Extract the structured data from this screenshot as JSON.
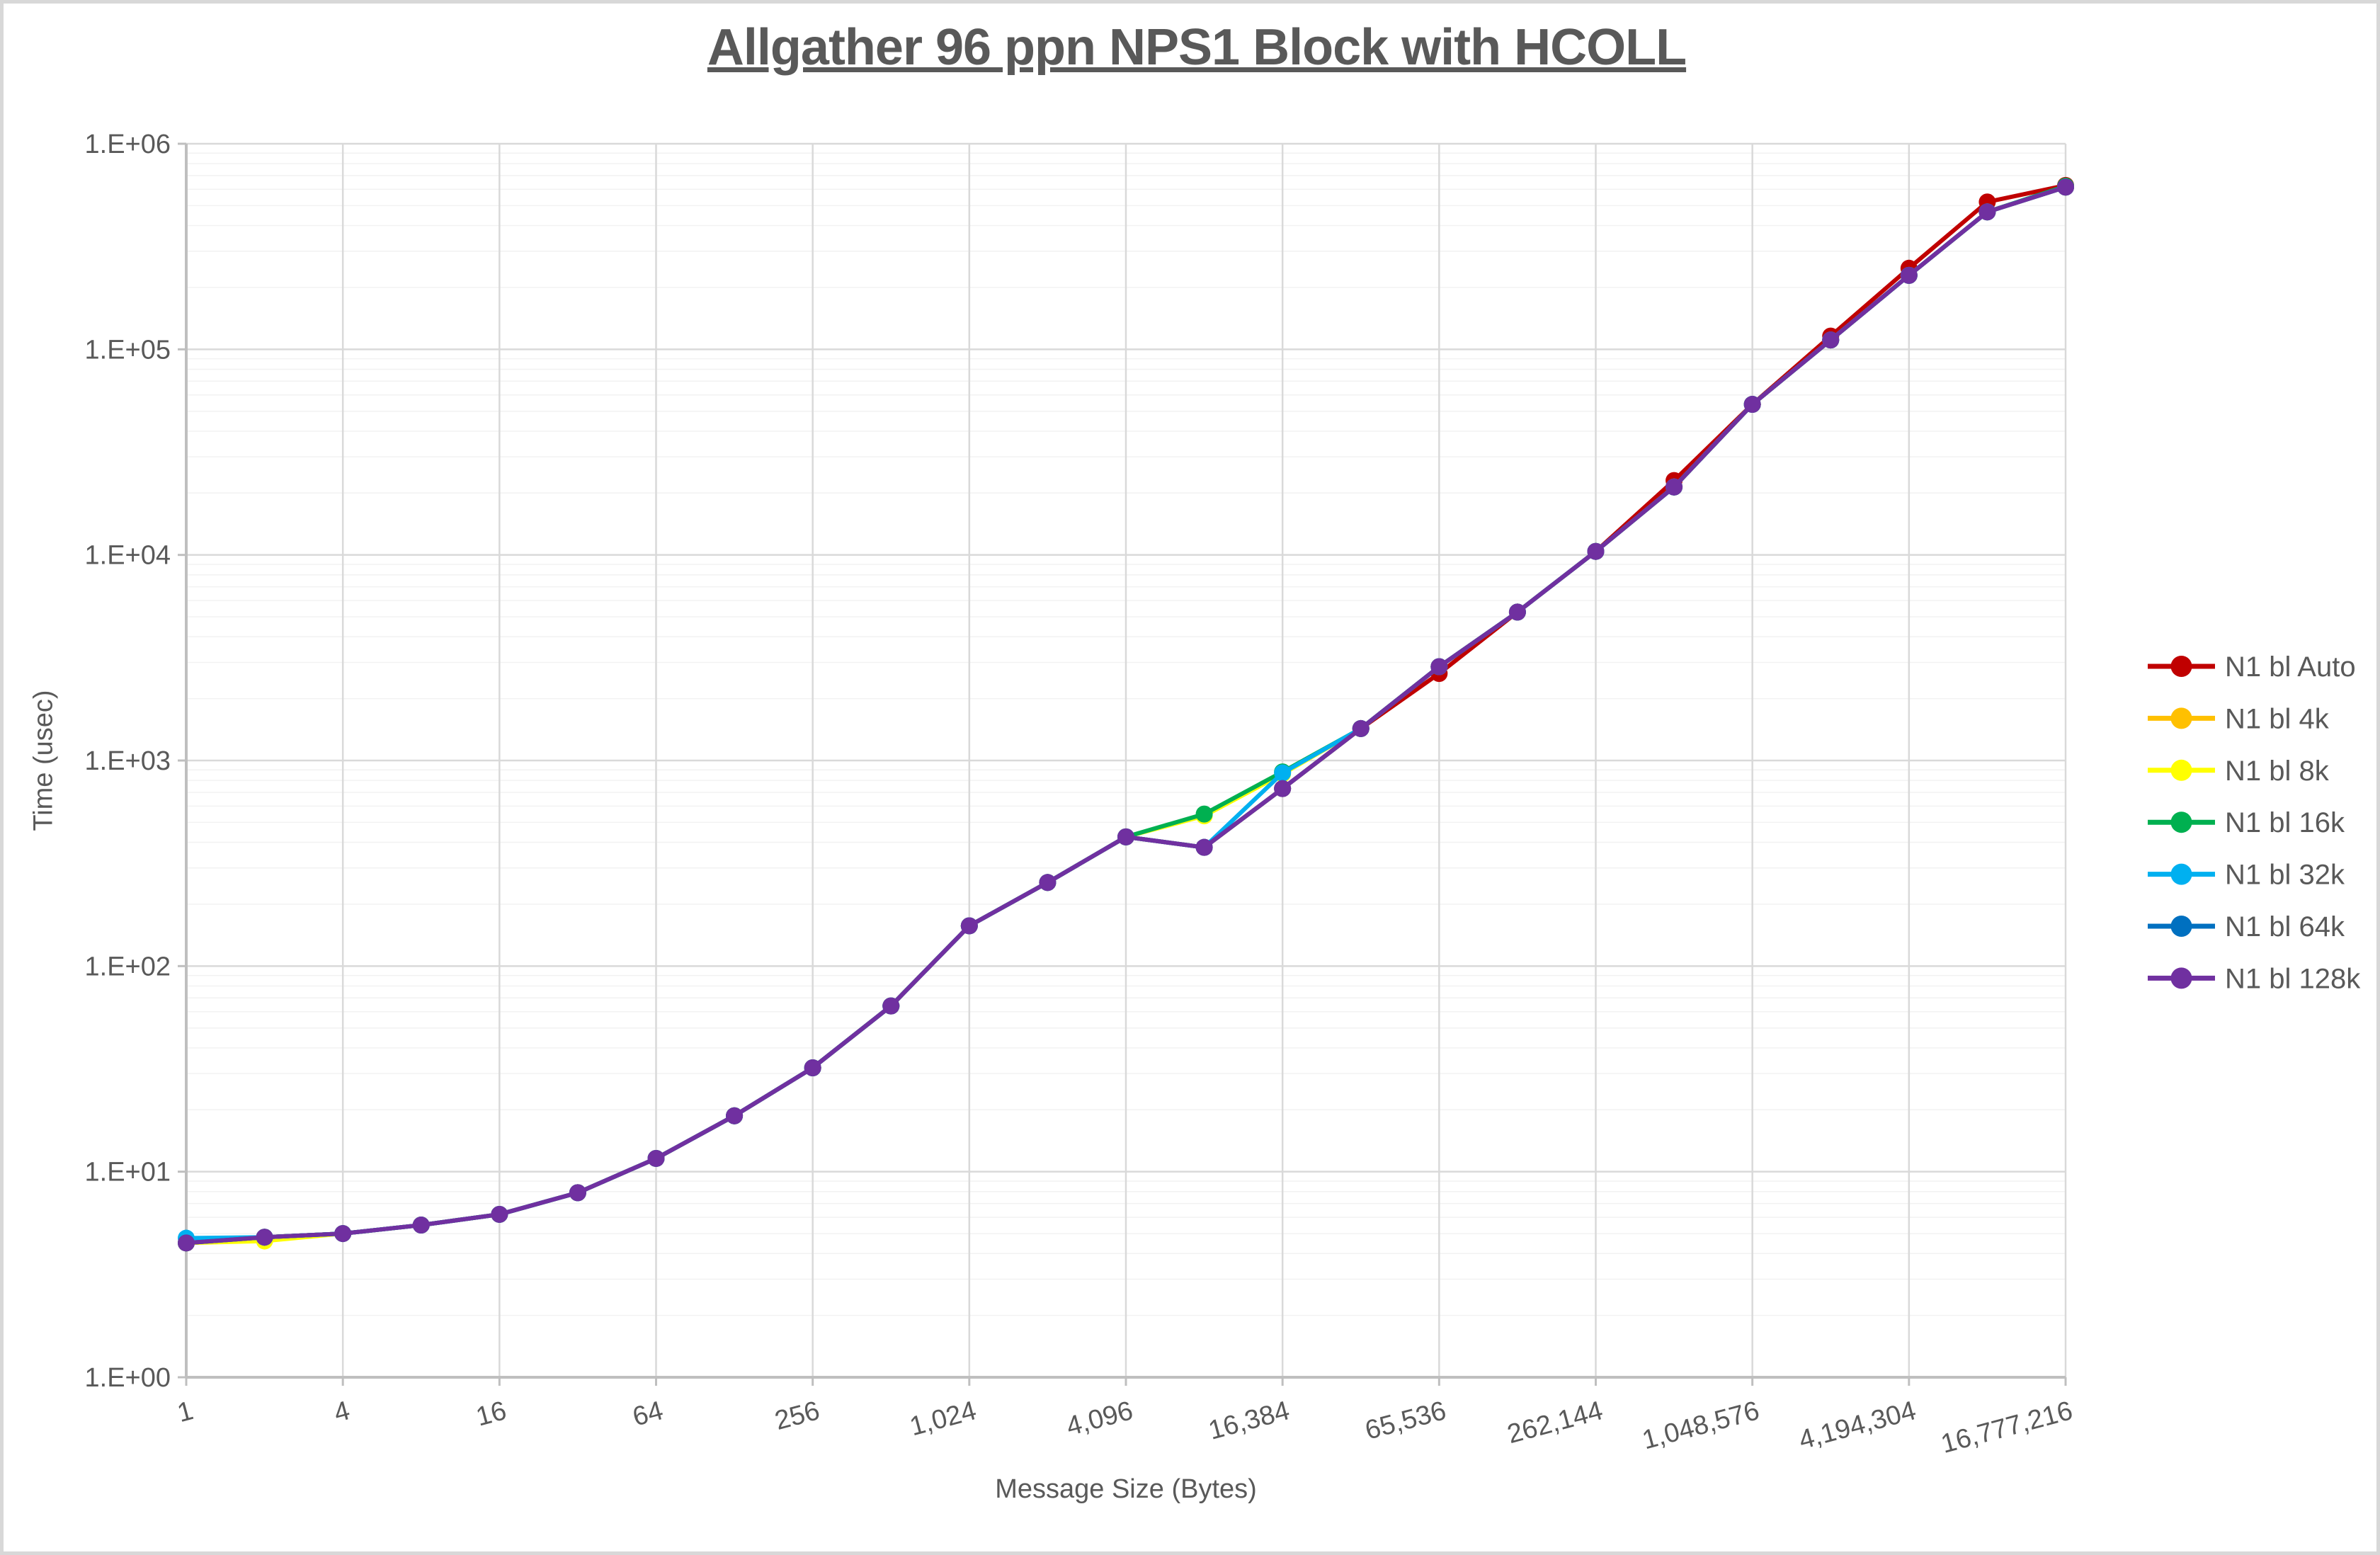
{
  "title": "Allgather 96 ppn NPS1 Block with HCOLL",
  "colors": {
    "text": "#595959",
    "axis_line": "#BFBFBF",
    "major_gridline": "#D9D9D9",
    "minor_gridline": "#F2F2F2",
    "frame_border": "#D8D8D8"
  },
  "chart_data": {
    "type": "line",
    "title": "Allgather 96 ppn NPS1 Block with HCOLL",
    "xlabel": "Message Size (Bytes)",
    "ylabel": "Time (usec)",
    "x_scale": "log2",
    "y_scale": "log10",
    "ylim": [
      1,
      1000000
    ],
    "grid": {
      "major": true,
      "minor_log": true
    },
    "legend_position": "right",
    "y_tick_labels": [
      "1.E+00",
      "1.E+01",
      "1.E+02",
      "1.E+03",
      "1.E+04",
      "1.E+05",
      "1.E+06"
    ],
    "x": [
      1,
      2,
      4,
      8,
      16,
      32,
      64,
      128,
      256,
      512,
      1024,
      2048,
      4096,
      8192,
      16384,
      32768,
      65536,
      131072,
      262144,
      524288,
      1048576,
      2097152,
      4194304,
      8388608,
      16777216
    ],
    "x_tick_labels": [
      "1",
      "4",
      "16",
      "64",
      "256",
      "1,024",
      "4,096",
      "16,384",
      "65,536",
      "262,144",
      "1,048,576",
      "4,194,304",
      "16,777,216"
    ],
    "series": [
      {
        "name": "N1 bl Auto",
        "color": "#C00000",
        "values": [
          4.5,
          4.8,
          5.0,
          5.5,
          6.2,
          7.9,
          11.6,
          18.7,
          32,
          64,
          157,
          255,
          425,
          378,
          730,
          1430,
          2650,
          5270,
          10400,
          23000,
          54000,
          116000,
          248000,
          521000,
          627000
        ]
      },
      {
        "name": "N1 bl 4k",
        "color": "#FFC000",
        "values": [
          4.5,
          4.8,
          5.0,
          5.5,
          6.2,
          7.9,
          11.6,
          18.7,
          32,
          64,
          157,
          255,
          425,
          378,
          730,
          1430,
          2860,
          5270,
          10400,
          21400,
          54000,
          111000,
          229000,
          466000,
          615000
        ]
      },
      {
        "name": "N1 bl 8k",
        "color": "#FFFF00",
        "values": [
          4.5,
          4.6,
          5.0,
          5.5,
          6.2,
          7.9,
          11.6,
          18.7,
          32,
          64,
          157,
          255,
          425,
          538,
          860,
          1430,
          2860,
          5270,
          10400,
          21400,
          54000,
          111000,
          229000,
          466000,
          615000
        ]
      },
      {
        "name": "N1 bl 16k",
        "color": "#00B050",
        "values": [
          4.5,
          4.8,
          5.0,
          5.5,
          6.2,
          7.9,
          11.6,
          18.7,
          32,
          64,
          157,
          255,
          425,
          549,
          880,
          1430,
          2860,
          5270,
          10400,
          21400,
          54000,
          111000,
          229000,
          466000,
          622000
        ]
      },
      {
        "name": "N1 bl 32k",
        "color": "#00B0F0",
        "values": [
          4.75,
          4.8,
          5.0,
          5.5,
          6.2,
          7.9,
          11.6,
          18.7,
          32,
          64,
          157,
          255,
          425,
          378,
          870,
          1430,
          2860,
          5270,
          10400,
          21400,
          54000,
          111000,
          229000,
          466000,
          615000
        ]
      },
      {
        "name": "N1 bl 64k",
        "color": "#0070C0",
        "values": [
          4.5,
          4.8,
          5.0,
          5.5,
          6.2,
          7.9,
          11.6,
          18.7,
          32,
          64,
          157,
          255,
          425,
          378,
          730,
          1430,
          2860,
          5270,
          10400,
          21400,
          54000,
          111000,
          229000,
          466000,
          615000
        ]
      },
      {
        "name": "N1 bl 128k",
        "color": "#7030A0",
        "values": [
          4.5,
          4.8,
          5.0,
          5.5,
          6.2,
          7.9,
          11.6,
          18.7,
          32,
          64,
          157,
          255,
          425,
          378,
          730,
          1430,
          2860,
          5270,
          10400,
          21400,
          54000,
          111000,
          229000,
          466000,
          615000
        ]
      }
    ]
  }
}
